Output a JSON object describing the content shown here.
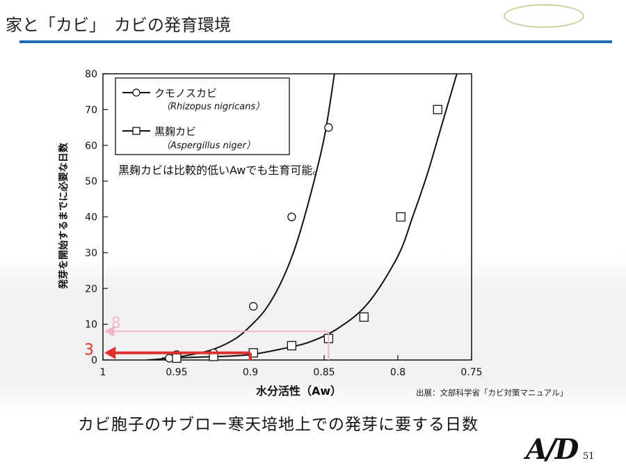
{
  "slide": {
    "title": "家と「カビ」　カビの発育環境",
    "source_note": "出展：文部科学省「カビ対策マニュアル」",
    "caption": "カビ胞子のサブロー寒天培地上での発芽に要する日数",
    "logo_text": "A/D",
    "page_number": "51",
    "accent_color": "#1f6ab0",
    "arrow_color": "#e03030",
    "arrow_light_color": "#f0b8c4"
  },
  "chart_data": {
    "type": "scatter",
    "xlabel": "水分活性（Aw）",
    "ylabel": "発芽を開始するまでに必要な日数",
    "xlim": [
      1,
      0.75
    ],
    "ylim": [
      0,
      80
    ],
    "x_ticks": [
      "1",
      "0.95",
      "0.9",
      "0.85",
      "0.8",
      "0.75"
    ],
    "y_ticks": [
      "0",
      "10",
      "20",
      "30",
      "40",
      "50",
      "60",
      "70",
      "80"
    ],
    "series": [
      {
        "name": "クモノスカビ",
        "latin": "（Rhizopus nigricans）",
        "marker": "circle",
        "points": [
          [
            0.955,
            0.5
          ],
          [
            0.95,
            1.5
          ],
          [
            0.925,
            2
          ],
          [
            0.898,
            15
          ],
          [
            0.872,
            40
          ],
          [
            0.847,
            65
          ]
        ],
        "curve": [
          [
            0.97,
            0
          ],
          [
            0.955,
            0.5
          ],
          [
            0.94,
            1.5
          ],
          [
            0.925,
            3
          ],
          [
            0.91,
            6
          ],
          [
            0.9,
            9.5
          ],
          [
            0.89,
            14
          ],
          [
            0.88,
            21
          ],
          [
            0.87,
            31
          ],
          [
            0.86,
            45
          ],
          [
            0.85,
            62
          ],
          [
            0.843,
            80
          ]
        ]
      },
      {
        "name": "黒麹カビ",
        "latin": "（Aspergillus niger）",
        "marker": "square",
        "points": [
          [
            0.95,
            0.5
          ],
          [
            0.925,
            1
          ],
          [
            0.898,
            2
          ],
          [
            0.872,
            4
          ],
          [
            0.847,
            6
          ],
          [
            0.823,
            12
          ],
          [
            0.798,
            40
          ],
          [
            0.773,
            70
          ]
        ],
        "curve": [
          [
            0.96,
            0.5
          ],
          [
            0.92,
            1
          ],
          [
            0.9,
            1.5
          ],
          [
            0.88,
            3
          ],
          [
            0.86,
            5
          ],
          [
            0.84,
            9
          ],
          [
            0.82,
            16
          ],
          [
            0.8,
            29
          ],
          [
            0.79,
            40
          ],
          [
            0.78,
            52
          ],
          [
            0.77,
            66
          ],
          [
            0.76,
            80
          ]
        ]
      }
    ],
    "annotation": "黒麹カビは比較的低いAwでも生育可能。",
    "markers": [
      {
        "label": "8",
        "x": 0.847,
        "y": 8,
        "style": "light"
      },
      {
        "label": "3",
        "x": 0.9,
        "y": 2,
        "style": "dark"
      }
    ],
    "grid": false,
    "legend": "top-left"
  }
}
